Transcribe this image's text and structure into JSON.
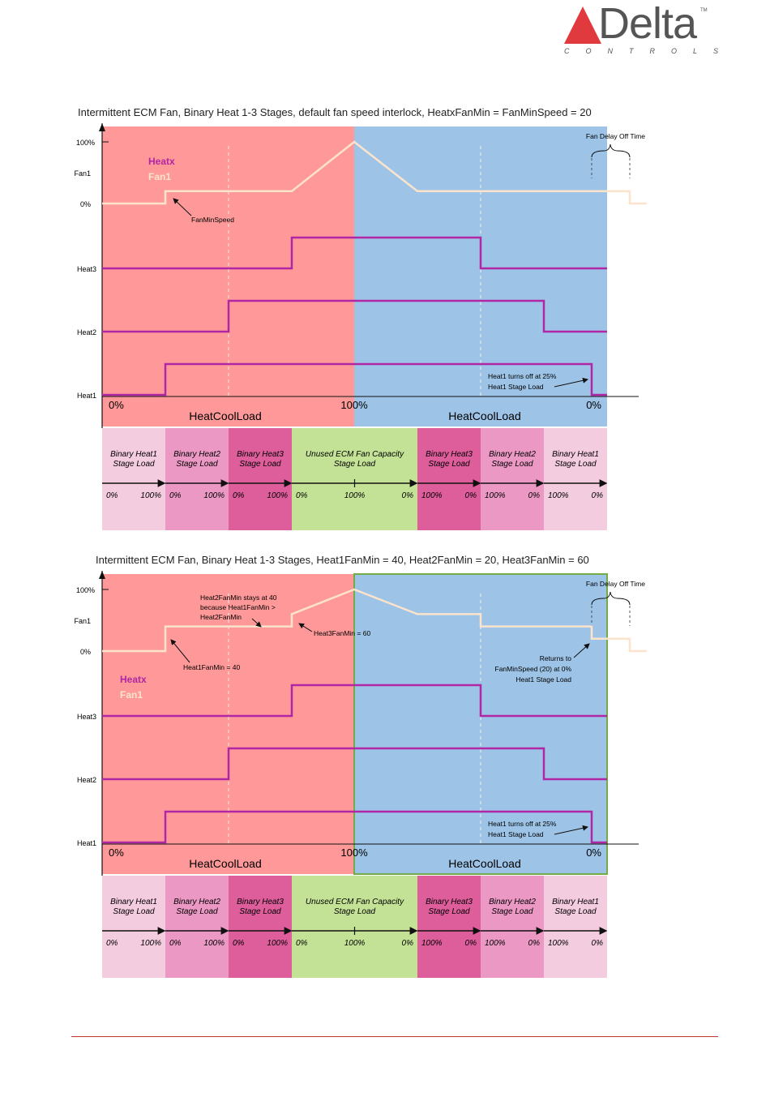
{
  "brand": {
    "word": "Delta",
    "sub": "CONTROLS",
    "tm": "TM",
    "accent": "#e03a3e"
  },
  "colors": {
    "heating_bg": "#ff9999",
    "cooling_bg": "#9dc3e6",
    "heatx_line": "#b026a4",
    "fan_line": "#fbe3cc",
    "binary1": "#f4cce0",
    "binary2": "#eb99c4",
    "binary3": "#de5d9b",
    "unused": "#c4e296",
    "green_border": "#70ad47"
  },
  "diagrams": [
    {
      "title": "Intermittent ECM Fan, Binary Heat 1-3 Stages, default fan speed interlock, HeatxFanMin = FanMinSpeed = 20",
      "y_labels": {
        "pct100": "100%",
        "fan": "Fan1",
        "pct0": "0%",
        "heat3": "Heat3",
        "heat2": "Heat2",
        "heat1": "Heat1"
      },
      "legend": {
        "heatx": "Heatx",
        "fan": "Fan1"
      },
      "x_labels": {
        "left": "0%",
        "mid": "100%",
        "right": "0%"
      },
      "load_labels": {
        "left": "HeatCoolLoad",
        "right": "HeatCoolLoad"
      },
      "annotations": {
        "fan_delay": "Fan Delay Off Time",
        "fanminspeed": "FanMinSpeed",
        "heat1_off_1": "Heat1 turns off at 25%",
        "heat1_off_2": "Heat1 Stage Load"
      },
      "fan_levels_pct": [
        0,
        20,
        20,
        100,
        20,
        20,
        0
      ],
      "bands": [
        {
          "l1": "Binary Heat1",
          "l2": "Stage Load",
          "from": "0%",
          "to": "100%"
        },
        {
          "l1": "Binary Heat2",
          "l2": "Stage Load",
          "from": "0%",
          "to": "100%"
        },
        {
          "l1": "Binary Heat3",
          "l2": "Stage Load",
          "from": "0%",
          "to": "100%"
        },
        {
          "l1": "Unused ECM Fan Capacity",
          "l2": "Stage Load",
          "from": "0%",
          "to": "0%",
          "mid": "100%"
        },
        {
          "l1": "Binary Heat3",
          "l2": "Stage Load",
          "from": "100%",
          "to": "0%"
        },
        {
          "l1": "Binary Heat2",
          "l2": "Stage Load",
          "from": "100%",
          "to": "0%"
        },
        {
          "l1": "Binary Heat1",
          "l2": "Stage Load",
          "from": "100%",
          "to": "0%"
        }
      ]
    },
    {
      "title": "Intermittent ECM Fan, Binary Heat 1-3 Stages, Heat1FanMin = 40, Heat2FanMin = 20, Heat3FanMin = 60",
      "y_labels": {
        "pct100": "100%",
        "fan": "Fan1",
        "pct0": "0%",
        "heat3": "Heat3",
        "heat2": "Heat2",
        "heat1": "Heat1"
      },
      "legend": {
        "heatx": "Heatx",
        "fan": "Fan1"
      },
      "x_labels": {
        "left": "0%",
        "mid": "100%",
        "right": "0%"
      },
      "load_labels": {
        "left": "HeatCoolLoad",
        "right": "HeatCoolLoad"
      },
      "annotations": {
        "fan_delay": "Fan Delay Off Time",
        "stays_1": "Heat2FanMin stays at 40",
        "stays_2": "because Heat1FanMin >",
        "stays_3": "Heat2FanMin",
        "heat3fanmin": "Heat3FanMin = 60",
        "heat1fanmin": "Heat1FanMin = 40",
        "returns_1": "Returns to",
        "returns_2": "FanMinSpeed (20) at 0%",
        "returns_3": "Heat1 Stage Load",
        "heat1_off_1": "Heat1 turns off at 25%",
        "heat1_off_2": "Heat1 Stage Load"
      },
      "fan_levels_pct": [
        0,
        40,
        40,
        60,
        100,
        60,
        40,
        20,
        0
      ],
      "bands": [
        {
          "l1": "Binary Heat1",
          "l2": "Stage Load",
          "from": "0%",
          "to": "100%"
        },
        {
          "l1": "Binary Heat2",
          "l2": "Stage Load",
          "from": "0%",
          "to": "100%"
        },
        {
          "l1": "Binary Heat3",
          "l2": "Stage Load",
          "from": "0%",
          "to": "100%"
        },
        {
          "l1": "Unused ECM Fan Capacity",
          "l2": "Stage Load",
          "from": "0%",
          "to": "0%",
          "mid": "100%"
        },
        {
          "l1": "Binary Heat3",
          "l2": "Stage Load",
          "from": "100%",
          "to": "0%"
        },
        {
          "l1": "Binary Heat2",
          "l2": "Stage Load",
          "from": "100%",
          "to": "0%"
        },
        {
          "l1": "Binary Heat1",
          "l2": "Stage Load",
          "from": "100%",
          "to": "0%"
        }
      ]
    }
  ]
}
